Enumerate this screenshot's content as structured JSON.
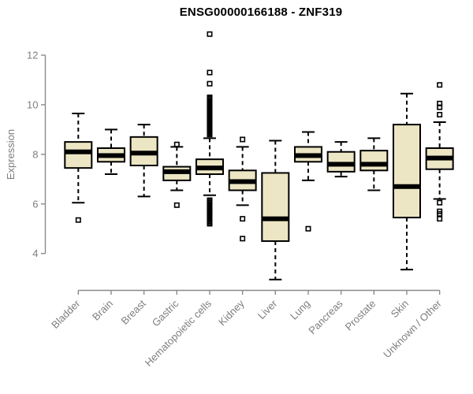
{
  "chart_data": {
    "type": "boxplot",
    "title": "ENSG00000166188 - ZNF319",
    "ylabel": "Expression",
    "xlabel": "",
    "y_ticks": [
      4,
      6,
      8,
      10,
      12
    ],
    "ylim": [
      2.6,
      13.1
    ],
    "grid": false,
    "legend": false,
    "categories": [
      "Bladder",
      "Brain",
      "Breast",
      "Gastric",
      "Hematopoietic cells",
      "Kidney",
      "Liver",
      "Lung",
      "Pancreas",
      "Prostate",
      "Skin",
      "Unknown / Other"
    ],
    "series": [
      {
        "category": "Bladder",
        "whisker_low": 6.05,
        "q1": 7.45,
        "median": 8.1,
        "q3": 8.5,
        "whisker_high": 9.65,
        "outliers": [
          5.35
        ]
      },
      {
        "category": "Brain",
        "whisker_low": 7.2,
        "q1": 7.7,
        "median": 7.95,
        "q3": 8.25,
        "whisker_high": 9.0,
        "outliers": []
      },
      {
        "category": "Breast",
        "whisker_low": 6.3,
        "q1": 7.55,
        "median": 8.05,
        "q3": 8.7,
        "whisker_high": 9.2,
        "outliers": []
      },
      {
        "category": "Gastric",
        "whisker_low": 6.55,
        "q1": 6.95,
        "median": 7.3,
        "q3": 7.5,
        "whisker_high": 8.3,
        "outliers": [
          8.4,
          5.95
        ]
      },
      {
        "category": "Hematopoietic cells",
        "whisker_low": 6.35,
        "q1": 7.2,
        "median": 7.45,
        "q3": 7.8,
        "whisker_high": 8.65,
        "outliers": [
          12.85,
          11.3,
          10.85,
          10.3,
          10.25,
          10.2,
          10.15,
          10.1,
          10.05,
          10.0,
          9.95,
          9.9,
          9.85,
          9.8,
          9.75,
          9.7,
          9.65,
          9.6,
          9.55,
          9.5,
          9.45,
          9.4,
          9.35,
          9.3,
          9.25,
          9.2,
          9.15,
          9.1,
          9.05,
          9.0,
          8.95,
          8.9,
          8.85,
          8.8,
          6.15,
          6.1,
          6.05,
          6.0,
          5.95,
          5.9,
          5.85,
          5.8,
          5.75,
          5.7,
          5.65,
          5.6,
          5.55,
          5.5,
          5.45,
          5.4,
          5.35,
          5.3,
          5.25,
          5.2
        ]
      },
      {
        "category": "Kidney",
        "whisker_low": 5.95,
        "q1": 6.55,
        "median": 6.9,
        "q3": 7.35,
        "whisker_high": 8.3,
        "outliers": [
          8.6,
          5.4,
          4.6
        ]
      },
      {
        "category": "Liver",
        "whisker_low": 2.95,
        "q1": 4.5,
        "median": 5.4,
        "q3": 7.25,
        "whisker_high": 8.55,
        "outliers": []
      },
      {
        "category": "Lung",
        "whisker_low": 6.95,
        "q1": 7.7,
        "median": 7.95,
        "q3": 8.3,
        "whisker_high": 8.9,
        "outliers": [
          5.0
        ]
      },
      {
        "category": "Pancreas",
        "whisker_low": 7.1,
        "q1": 7.3,
        "median": 7.6,
        "q3": 8.1,
        "whisker_high": 8.5,
        "outliers": []
      },
      {
        "category": "Prostate",
        "whisker_low": 6.55,
        "q1": 7.35,
        "median": 7.6,
        "q3": 8.15,
        "whisker_high": 8.65,
        "outliers": []
      },
      {
        "category": "Skin",
        "whisker_low": 3.35,
        "q1": 5.45,
        "median": 6.7,
        "q3": 9.2,
        "whisker_high": 10.45,
        "outliers": []
      },
      {
        "category": "Unknown / Other",
        "whisker_low": 6.2,
        "q1": 7.4,
        "median": 7.85,
        "q3": 8.25,
        "whisker_high": 9.3,
        "outliers": [
          10.8,
          10.05,
          9.9,
          9.6,
          6.05,
          5.7,
          5.6,
          5.4
        ]
      }
    ]
  },
  "style": {
    "background": "#ffffff",
    "box_fill": "#ece6c4",
    "box_stroke": "#000000",
    "median_color": "#000000",
    "whisker_color": "#000000",
    "outlier_color": "#000000",
    "axis_color": "#8a8a8a",
    "tick_label_color": "#7e7e7e",
    "title_color": "#000000"
  }
}
